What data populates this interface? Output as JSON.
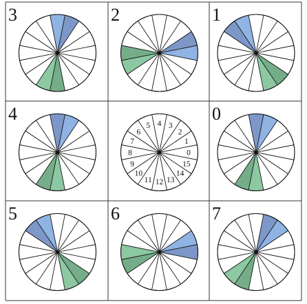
{
  "colors": {
    "blue": "#8fb3e3",
    "blue_dark": "#7d97c9",
    "green": "#8cc8a2",
    "green_dark": "#74ad88",
    "line": "#111111",
    "grid": "#333333",
    "fill_empty": "#ffffff"
  },
  "segments_per_wheel": 16,
  "center_labels": [
    "0",
    "1",
    "2",
    "3",
    "4",
    "5",
    "6",
    "7",
    "8",
    "9",
    "10",
    "11",
    "12",
    "13",
    "14",
    "15"
  ],
  "panels": [
    {
      "label": "3",
      "slices": {
        "3": "blue_dark",
        "4": "blue",
        "11": "green",
        "12": "green_dark"
      }
    },
    {
      "label": "2",
      "slices": {
        "0": "blue",
        "1": "blue_dark",
        "8": "green_dark",
        "9": "green"
      }
    },
    {
      "label": "1",
      "slices": {
        "5": "blue",
        "6": "blue_dark",
        "13": "green",
        "14": "green_dark"
      }
    },
    {
      "label": "4",
      "slices": {
        "3": "blue",
        "4": "blue_dark",
        "11": "green_dark",
        "12": "green"
      }
    },
    {
      "label": "",
      "center": true
    },
    {
      "label": "0",
      "slices": {
        "3": "blue",
        "4": "blue_dark",
        "11": "green_dark",
        "12": "green"
      }
    },
    {
      "label": "5",
      "slices": {
        "5": "blue",
        "6": "blue_dark",
        "13": "green",
        "14": "green_dark"
      }
    },
    {
      "label": "6",
      "slices": {
        "0": "blue_dark",
        "1": "blue",
        "8": "green",
        "9": "green_dark"
      }
    },
    {
      "label": "7",
      "slices": {
        "2": "blue",
        "3": "blue_dark",
        "10": "green",
        "11": "green_dark"
      }
    }
  ]
}
